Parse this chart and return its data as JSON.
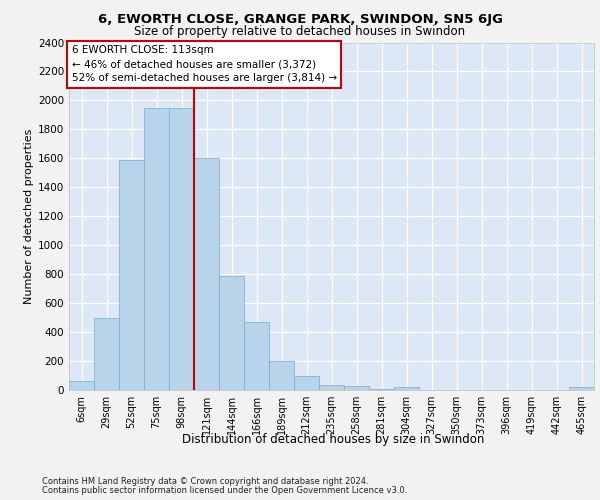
{
  "title1": "6, EWORTH CLOSE, GRANGE PARK, SWINDON, SN5 6JG",
  "title2": "Size of property relative to detached houses in Swindon",
  "xlabel": "Distribution of detached houses by size in Swindon",
  "ylabel": "Number of detached properties",
  "categories": [
    "6sqm",
    "29sqm",
    "52sqm",
    "75sqm",
    "98sqm",
    "121sqm",
    "144sqm",
    "166sqm",
    "189sqm",
    "212sqm",
    "235sqm",
    "258sqm",
    "281sqm",
    "304sqm",
    "327sqm",
    "350sqm",
    "373sqm",
    "396sqm",
    "419sqm",
    "442sqm",
    "465sqm"
  ],
  "values": [
    60,
    500,
    1590,
    1950,
    1950,
    1600,
    790,
    470,
    200,
    95,
    35,
    28,
    8,
    20,
    2,
    0,
    0,
    0,
    0,
    0,
    20
  ],
  "bar_color": "#b8d4ea",
  "bar_edge_color": "#7aaacf",
  "vline_pos": 4.5,
  "vline_color": "#cc0000",
  "ann_line1": "6 EWORTH CLOSE: 113sqm",
  "ann_line2": "← 46% of detached houses are smaller (3,372)",
  "ann_line3": "52% of semi-detached houses are larger (3,814) →",
  "ann_box_fc": "#ffffff",
  "ann_box_ec": "#cc0000",
  "ylim": [
    0,
    2400
  ],
  "yticks": [
    0,
    200,
    400,
    600,
    800,
    1000,
    1200,
    1400,
    1600,
    1800,
    2000,
    2200,
    2400
  ],
  "plot_bg": "#dce8f5",
  "grid_color": "#ffffff",
  "fig_bg": "#f2f2f2",
  "footer1": "Contains HM Land Registry data © Crown copyright and database right 2024.",
  "footer2": "Contains public sector information licensed under the Open Government Licence v3.0."
}
